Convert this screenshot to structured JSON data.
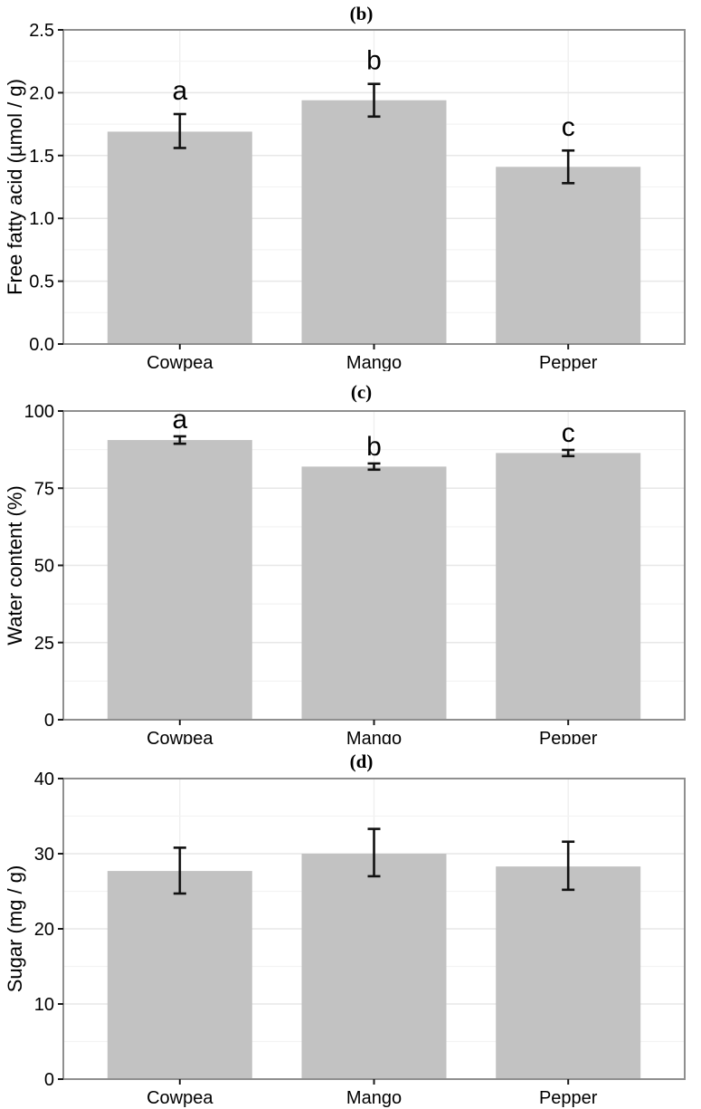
{
  "figure": {
    "description": "Three stacked single-series bar charts comparing Cowpea, Mango and Pepper",
    "colors": {
      "bar_fill": "#c2c2c2",
      "error_bar": "#111111",
      "plot_border": "#8f8f8f",
      "grid_major": "#e7e7e7",
      "grid_minor": "#f3f3f3",
      "grid_vertical": "#efefef",
      "tick_mark": "#1a1a1a",
      "text": "#000000",
      "background": "#ffffff"
    }
  },
  "chart_data": [
    {
      "type": "bar",
      "title": "(b)",
      "ylabel": "Free fatty acid (µmol / g)",
      "xlabel": "",
      "categories": [
        "Cowpea",
        "Mango",
        "Pepper"
      ],
      "values": [
        1.69,
        1.94,
        1.41
      ],
      "error_low": [
        1.56,
        1.81,
        1.28
      ],
      "error_high": [
        1.83,
        2.07,
        1.54
      ],
      "sig_letters": [
        "a",
        "b",
        "c"
      ],
      "ylim": [
        0,
        2.5
      ],
      "ytick_values": [
        0,
        0.5,
        1.0,
        1.5,
        2.0,
        2.5
      ],
      "ytick_labels": [
        "0.0",
        "0.5",
        "1.0",
        "1.5",
        "2.0",
        "2.5"
      ],
      "grid": "horizontal major + minor, faint vertical at category centers",
      "legend_position": "none"
    },
    {
      "type": "bar",
      "title": "(c)",
      "ylabel": "Water content (%)",
      "xlabel": "",
      "categories": [
        "Cowpea",
        "Mango",
        "Pepper"
      ],
      "values": [
        90.6,
        82.0,
        86.4
      ],
      "error_low": [
        89.4,
        81.0,
        85.4
      ],
      "error_high": [
        91.8,
        83.0,
        87.4
      ],
      "sig_letters": [
        "a",
        "b",
        "c"
      ],
      "ylim": [
        0,
        100
      ],
      "ytick_values": [
        0,
        25,
        50,
        75,
        100
      ],
      "ytick_labels": [
        "0",
        "25",
        "50",
        "75",
        "100"
      ],
      "grid": "horizontal major + minor, faint vertical at category centers",
      "legend_position": "none"
    },
    {
      "type": "bar",
      "title": "(d)",
      "ylabel": "Sugar (mg / g)",
      "xlabel": "",
      "categories": [
        "Cowpea",
        "Mango",
        "Pepper"
      ],
      "values": [
        27.7,
        30.0,
        28.3
      ],
      "error_low": [
        24.7,
        27.0,
        25.2
      ],
      "error_high": [
        30.8,
        33.3,
        31.6
      ],
      "sig_letters": [
        "",
        "",
        ""
      ],
      "ylim": [
        0,
        40
      ],
      "ytick_values": [
        0,
        10,
        20,
        30,
        40
      ],
      "ytick_labels": [
        "0",
        "10",
        "20",
        "30",
        "40"
      ],
      "grid": "horizontal major + minor, faint vertical at category centers",
      "legend_position": "none"
    }
  ]
}
